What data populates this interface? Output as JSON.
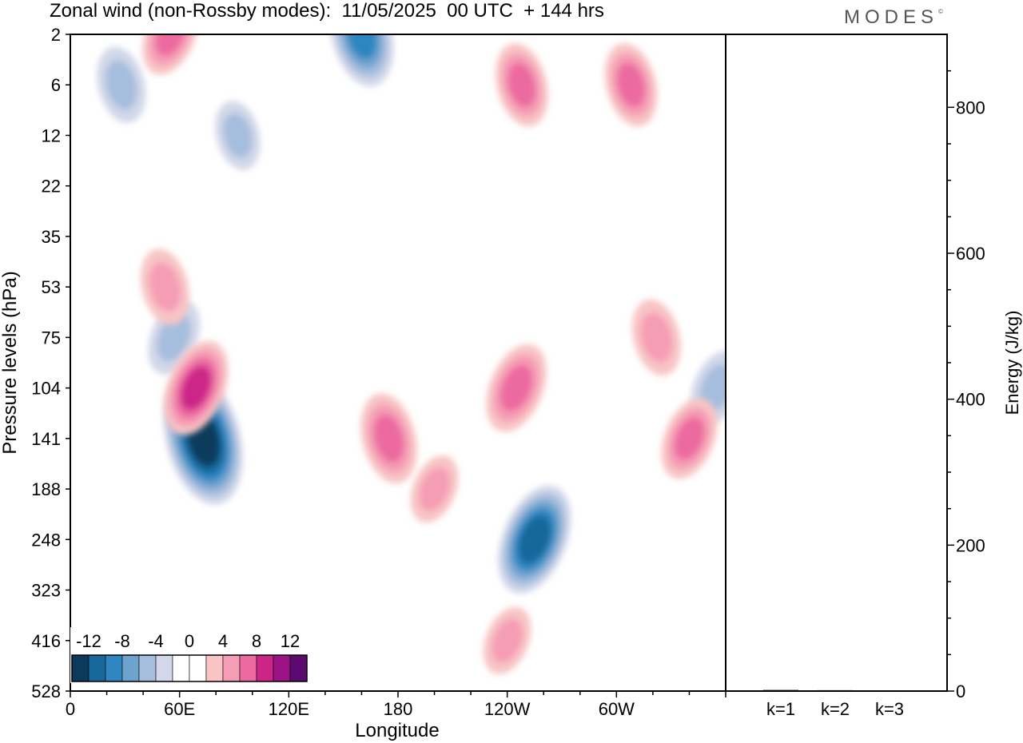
{
  "header": {
    "title": "Zonal wind (non-Rossby modes):  11/05/2025  00 UTC  + 144 hrs",
    "logo": "MODES",
    "logo_mark": "©"
  },
  "chart_data": [
    {
      "type": "heatmap",
      "xlabel": "Longitude",
      "ylabel": "Pressure levels (hPa)",
      "x_ticks": [
        "0",
        "60E",
        "120E",
        "180",
        "120W",
        "60W"
      ],
      "x_tick_degrees": [
        0,
        60,
        120,
        180,
        240,
        300
      ],
      "xlim": [
        0,
        360
      ],
      "y_ticks": [
        "2",
        "6",
        "12",
        "22",
        "35",
        "53",
        "75",
        "104",
        "141",
        "188",
        "248",
        "323",
        "416",
        "528"
      ],
      "colorbar": {
        "tick_labels": [
          "-12",
          "-8",
          "-4",
          "0",
          "4",
          "8",
          "12"
        ],
        "colors": [
          "#0b3a5c",
          "#17689b",
          "#2f86c0",
          "#6fa3cf",
          "#a6bedd",
          "#d2d7e9",
          "#ffffff",
          "#ffffff",
          "#f8c4c4",
          "#f59db5",
          "#ec6aa0",
          "#cc2588",
          "#9c1385",
          "#5c0a70"
        ]
      },
      "features": [
        {
          "kind": "negative",
          "lon": 73,
          "level": "141",
          "amplitude": -13
        },
        {
          "kind": "negative",
          "lon": 255,
          "level": "248",
          "amplitude": -10
        },
        {
          "kind": "negative",
          "lon": 160,
          "level": "2",
          "amplitude": -9
        },
        {
          "kind": "negative",
          "lon": 57,
          "level": "75",
          "amplitude": -5
        },
        {
          "kind": "negative",
          "lon": 28,
          "level": "6",
          "amplitude": -5
        },
        {
          "kind": "negative",
          "lon": 355,
          "level": "104",
          "amplitude": -5
        },
        {
          "kind": "negative",
          "lon": 92,
          "level": "12",
          "amplitude": -4
        },
        {
          "kind": "positive",
          "lon": 69,
          "level": "104",
          "amplitude": 8
        },
        {
          "kind": "positive",
          "lon": 175,
          "level": "141",
          "amplitude": 7
        },
        {
          "kind": "positive",
          "lon": 245,
          "level": "104",
          "amplitude": 7
        },
        {
          "kind": "positive",
          "lon": 248,
          "level": "6",
          "amplitude": 6
        },
        {
          "kind": "positive",
          "lon": 55,
          "level": "2",
          "amplitude": 6
        },
        {
          "kind": "positive",
          "lon": 308,
          "level": "6",
          "amplitude": 6
        },
        {
          "kind": "positive",
          "lon": 340,
          "level": "141",
          "amplitude": 6
        },
        {
          "kind": "positive",
          "lon": 52,
          "level": "53",
          "amplitude": 5
        },
        {
          "kind": "positive",
          "lon": 200,
          "level": "188",
          "amplitude": 4
        },
        {
          "kind": "positive",
          "lon": 322,
          "level": "75",
          "amplitude": 5
        },
        {
          "kind": "positive",
          "lon": 240,
          "level": "416",
          "amplitude": 4
        }
      ]
    },
    {
      "type": "bar",
      "ylabel": "Energy (J/kg)",
      "categories": [
        "k=1",
        "k=2",
        "k=3"
      ],
      "values": [
        1.5,
        1.2,
        0.8
      ],
      "ylim": [
        0,
        900
      ],
      "y_ticks": [
        "0",
        "200",
        "400",
        "600",
        "800"
      ]
    }
  ]
}
